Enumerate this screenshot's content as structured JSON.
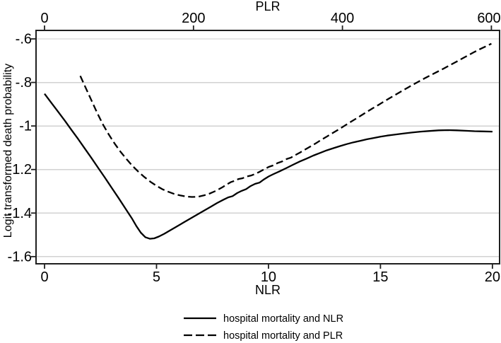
{
  "chart_data": {
    "type": "line",
    "title": "",
    "y": {
      "label": "Logit transformed death probability",
      "range": [
        -1.633,
        -0.561
      ],
      "ticks": [
        -0.6,
        -0.8,
        -1.0,
        -1.2,
        -1.4,
        -1.6
      ],
      "tick_labels": [
        "-.6",
        "-.8",
        "-1",
        "-1.2",
        "-1.4",
        "-1.6"
      ],
      "grid": true
    },
    "x_bottom": {
      "label": "NLR",
      "range": [
        -0.38,
        20.32
      ],
      "ticks": [
        0,
        5,
        10,
        15,
        20
      ],
      "tick_labels": [
        "0",
        "5",
        "10",
        "15",
        "20"
      ]
    },
    "x_top": {
      "label": "PLR",
      "range": [
        -11.4,
        611.0
      ],
      "ticks": [
        0,
        200,
        400,
        600
      ],
      "tick_labels": [
        "0",
        "200",
        "400",
        "600"
      ]
    },
    "legend": {
      "position": "bottom-center"
    },
    "colors": {
      "curve": "#000000",
      "grid": "#d2d2d2",
      "frame": "#1f1f1f",
      "text": "#000000",
      "background": "#ffffff"
    },
    "series": [
      {
        "name": "hospital mortality and NLR",
        "line_style": "solid",
        "x_axis": "bottom",
        "color": "#000000",
        "points": [
          [
            0,
            -0.852
          ],
          [
            0.3,
            -0.893
          ],
          [
            0.6,
            -0.934
          ],
          [
            0.9,
            -0.975
          ],
          [
            1.2,
            -1.018
          ],
          [
            1.5,
            -1.06
          ],
          [
            1.8,
            -1.104
          ],
          [
            2.1,
            -1.148
          ],
          [
            2.4,
            -1.193
          ],
          [
            2.7,
            -1.238
          ],
          [
            3,
            -1.284
          ],
          [
            3.3,
            -1.33
          ],
          [
            3.6,
            -1.377
          ],
          [
            3.9,
            -1.424
          ],
          [
            4.1,
            -1.46
          ],
          [
            4.3,
            -1.49
          ],
          [
            4.5,
            -1.511
          ],
          [
            4.7,
            -1.518
          ],
          [
            4.9,
            -1.516
          ],
          [
            5.1,
            -1.508
          ],
          [
            5.35,
            -1.495
          ],
          [
            5.6,
            -1.48
          ],
          [
            5.9,
            -1.462
          ],
          [
            6.2,
            -1.444
          ],
          [
            6.5,
            -1.426
          ],
          [
            6.8,
            -1.408
          ],
          [
            7.1,
            -1.39
          ],
          [
            7.4,
            -1.372
          ],
          [
            7.7,
            -1.354
          ],
          [
            8,
            -1.338
          ],
          [
            8.2,
            -1.328
          ],
          [
            8.4,
            -1.322
          ],
          [
            8.6,
            -1.308
          ],
          [
            8.8,
            -1.298
          ],
          [
            9,
            -1.29
          ],
          [
            9.2,
            -1.276
          ],
          [
            9.4,
            -1.266
          ],
          [
            9.6,
            -1.26
          ],
          [
            9.8,
            -1.245
          ],
          [
            10,
            -1.232
          ],
          [
            10.2,
            -1.222
          ],
          [
            10.5,
            -1.208
          ],
          [
            10.8,
            -1.193
          ],
          [
            11.1,
            -1.178
          ],
          [
            11.4,
            -1.163
          ],
          [
            11.7,
            -1.15
          ],
          [
            12,
            -1.136
          ],
          [
            12.3,
            -1.124
          ],
          [
            12.6,
            -1.112
          ],
          [
            12.9,
            -1.102
          ],
          [
            13.2,
            -1.092
          ],
          [
            13.5,
            -1.083
          ],
          [
            13.8,
            -1.075
          ],
          [
            14.1,
            -1.068
          ],
          [
            14.4,
            -1.061
          ],
          [
            14.7,
            -1.055
          ],
          [
            15,
            -1.049
          ],
          [
            15.3,
            -1.044
          ],
          [
            15.6,
            -1.04
          ],
          [
            16,
            -1.035
          ],
          [
            16.4,
            -1.03
          ],
          [
            16.8,
            -1.026
          ],
          [
            17.2,
            -1.023
          ],
          [
            17.6,
            -1.02
          ],
          [
            18,
            -1.019
          ],
          [
            18.4,
            -1.02
          ],
          [
            18.8,
            -1.022
          ],
          [
            19.2,
            -1.024
          ],
          [
            19.6,
            -1.025
          ],
          [
            20,
            -1.026
          ]
        ]
      },
      {
        "name": "hospital mortality and PLR",
        "line_style": "dashed",
        "x_axis": "top",
        "color": "#000000",
        "points": [
          [
            48,
            -0.77
          ],
          [
            54,
            -0.815
          ],
          [
            62,
            -0.875
          ],
          [
            70,
            -0.935
          ],
          [
            78,
            -0.99
          ],
          [
            86,
            -1.038
          ],
          [
            94,
            -1.08
          ],
          [
            102,
            -1.118
          ],
          [
            110,
            -1.152
          ],
          [
            118,
            -1.183
          ],
          [
            126,
            -1.21
          ],
          [
            134,
            -1.234
          ],
          [
            142,
            -1.256
          ],
          [
            150,
            -1.274
          ],
          [
            158,
            -1.29
          ],
          [
            166,
            -1.302
          ],
          [
            174,
            -1.312
          ],
          [
            182,
            -1.319
          ],
          [
            190,
            -1.324
          ],
          [
            198,
            -1.326
          ],
          [
            206,
            -1.325
          ],
          [
            214,
            -1.319
          ],
          [
            222,
            -1.31
          ],
          [
            230,
            -1.298
          ],
          [
            238,
            -1.283
          ],
          [
            245,
            -1.268
          ],
          [
            250,
            -1.258
          ],
          [
            255,
            -1.252
          ],
          [
            260,
            -1.244
          ],
          [
            266,
            -1.24
          ],
          [
            271,
            -1.232
          ],
          [
            277,
            -1.228
          ],
          [
            283,
            -1.22
          ],
          [
            289,
            -1.21
          ],
          [
            295,
            -1.199
          ],
          [
            301,
            -1.188
          ],
          [
            307,
            -1.181
          ],
          [
            313,
            -1.17
          ],
          [
            319,
            -1.163
          ],
          [
            325,
            -1.152
          ],
          [
            331,
            -1.145
          ],
          [
            337,
            -1.133
          ],
          [
            343,
            -1.122
          ],
          [
            350,
            -1.108
          ],
          [
            357,
            -1.094
          ],
          [
            364,
            -1.08
          ],
          [
            371,
            -1.065
          ],
          [
            378,
            -1.051
          ],
          [
            385,
            -1.036
          ],
          [
            392,
            -1.022
          ],
          [
            400,
            -1.005
          ],
          [
            408,
            -0.988
          ],
          [
            416,
            -0.971
          ],
          [
            424,
            -0.954
          ],
          [
            432,
            -0.937
          ],
          [
            440,
            -0.92
          ],
          [
            448,
            -0.904
          ],
          [
            456,
            -0.887
          ],
          [
            464,
            -0.871
          ],
          [
            472,
            -0.855
          ],
          [
            480,
            -0.839
          ],
          [
            488,
            -0.823
          ],
          [
            496,
            -0.808
          ],
          [
            504,
            -0.793
          ],
          [
            512,
            -0.778
          ],
          [
            520,
            -0.764
          ],
          [
            528,
            -0.75
          ],
          [
            536,
            -0.736
          ],
          [
            544,
            -0.721
          ],
          [
            552,
            -0.707
          ],
          [
            560,
            -0.692
          ],
          [
            568,
            -0.677
          ],
          [
            576,
            -0.662
          ],
          [
            584,
            -0.648
          ],
          [
            592,
            -0.635
          ],
          [
            600,
            -0.622
          ]
        ]
      }
    ]
  }
}
